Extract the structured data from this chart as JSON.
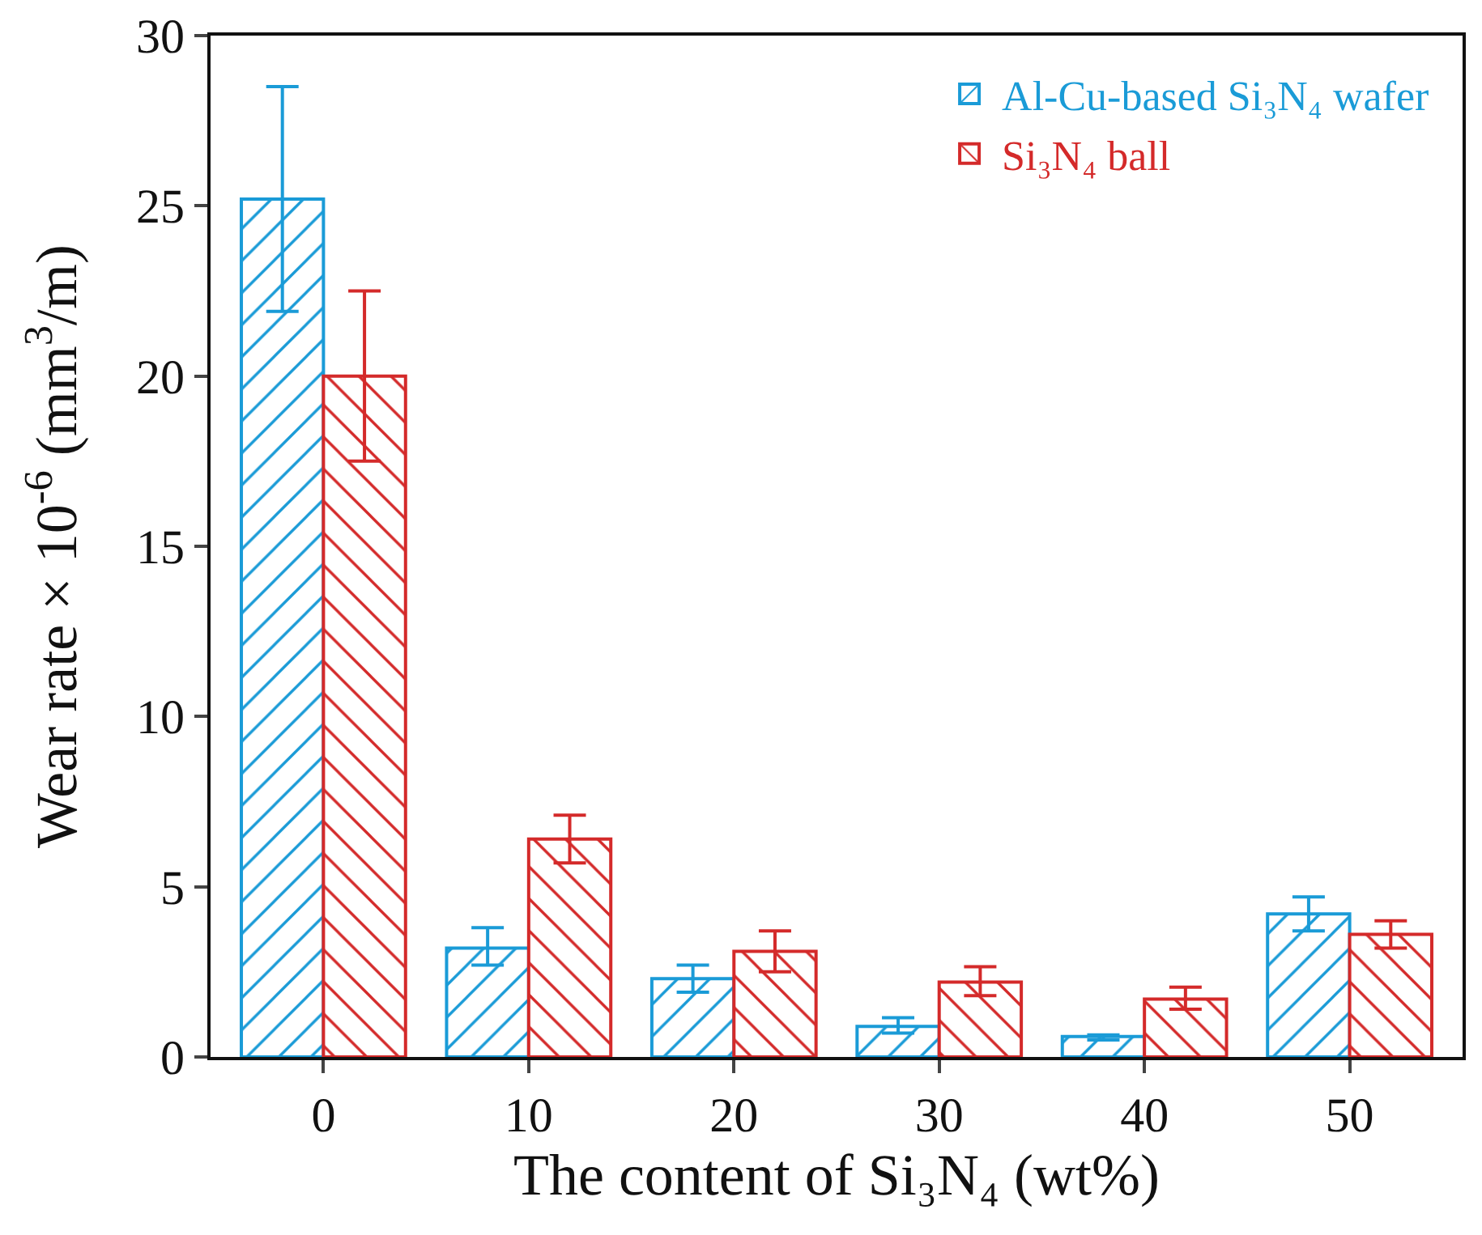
{
  "chart_data": {
    "type": "bar",
    "xlabel": "The content of Si₃N₄ (wt%)",
    "ylabel": "Wear rate × 10$^{-6}$ (mm$^{3}$/m)",
    "categories": [
      "0",
      "10",
      "20",
      "30",
      "40",
      "50"
    ],
    "series": [
      {
        "name": "Al-Cu-based Si₃N₄ wafer",
        "color": "#1a9bd7",
        "values": [
          25.2,
          3.2,
          2.3,
          0.9,
          0.6,
          4.2
        ],
        "errors": [
          [
            21.9,
            28.5
          ],
          [
            2.7,
            3.8
          ],
          [
            1.9,
            2.7
          ],
          [
            0.7,
            1.15
          ],
          [
            0.5,
            0.65
          ],
          [
            3.7,
            4.7
          ]
        ]
      },
      {
        "name": "Si₃N₄ ball",
        "color": "#d42a2a",
        "values": [
          20.0,
          6.4,
          3.1,
          2.2,
          1.7,
          3.6
        ],
        "errors": [
          [
            17.5,
            22.5
          ],
          [
            5.7,
            7.1
          ],
          [
            2.5,
            3.7
          ],
          [
            1.8,
            2.65
          ],
          [
            1.4,
            2.05
          ],
          [
            3.2,
            4.0
          ]
        ]
      }
    ],
    "ylim": [
      0,
      30
    ],
    "yticks": [
      0,
      5,
      10,
      15,
      20,
      25,
      30
    ],
    "grid": false,
    "legend": "top right"
  }
}
